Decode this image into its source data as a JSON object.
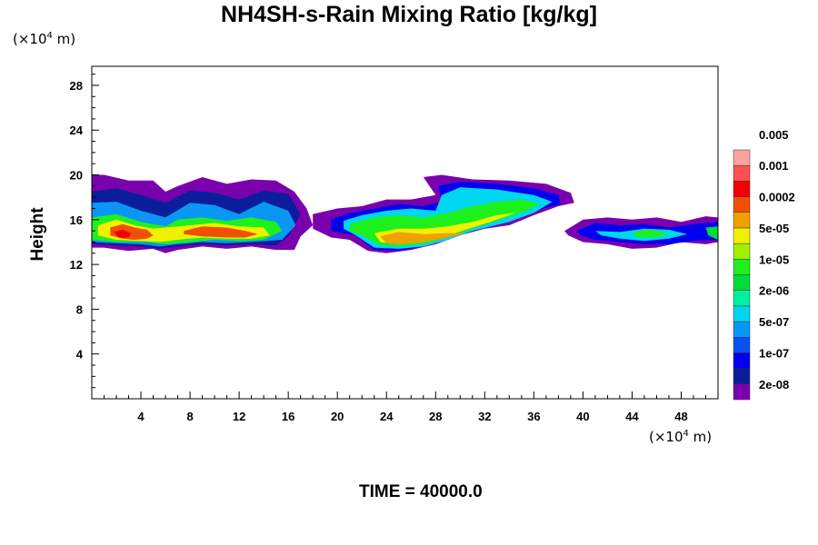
{
  "chart_data": {
    "type": "heatmap",
    "title": "NH4SH-s-Rain Mixing Ratio [kg/kg]",
    "ylabel": "Height",
    "x_unit_prefix": "(×10",
    "x_unit_exp": "4",
    "x_unit_suffix": " m)",
    "y_unit_prefix": "(×10",
    "y_unit_exp": "4",
    "y_unit_suffix": " m)",
    "xlim": [
      0,
      51
    ],
    "ylim": [
      0,
      29.7
    ],
    "x_ticks": [
      4,
      8,
      12,
      16,
      20,
      24,
      28,
      32,
      36,
      40,
      44,
      48
    ],
    "y_ticks": [
      4,
      8,
      12,
      16,
      20,
      24,
      28
    ],
    "colorbar": {
      "colors": [
        "#7a00ae",
        "#0a1e9c",
        "#0000ee",
        "#0a50f0",
        "#0a96f5",
        "#00d6f0",
        "#00f0a0",
        "#00dc3c",
        "#1ef01e",
        "#a0f000",
        "#f0f000",
        "#f0a000",
        "#f05000",
        "#f00000",
        "#ff5050",
        "#ffa0a0"
      ],
      "labels": [
        "2e-08",
        "1e-07",
        "5e-07",
        "2e-06",
        "1e-05",
        "5e-05",
        "0.0002",
        "0.001",
        "0.005"
      ]
    },
    "cloud_layers": [
      {
        "x": [
          0,
          1,
          3,
          5,
          6,
          7,
          9,
          11,
          13,
          15,
          16.5,
          17.5,
          18,
          17,
          16.5,
          15,
          13,
          11,
          9,
          7,
          6,
          5,
          3,
          1,
          0
        ],
        "y": [
          20,
          20,
          19.5,
          19.5,
          18.5,
          19,
          19.8,
          19.2,
          19.6,
          19.5,
          18.5,
          17,
          15.5,
          14.5,
          13.3,
          13.3,
          13.6,
          13.4,
          13.6,
          13.3,
          13,
          13.4,
          13.2,
          13.5,
          13.5
        ],
        "level": 0
      },
      {
        "x": [
          0,
          2,
          4,
          6,
          8,
          10,
          12,
          14,
          16,
          17,
          16,
          15,
          13,
          11,
          9,
          7,
          5.5,
          4,
          2,
          0
        ],
        "y": [
          18.5,
          18.8,
          18.2,
          17.5,
          18.6,
          18.4,
          17.8,
          18.6,
          18.3,
          16.5,
          14.5,
          13.7,
          13.8,
          13.7,
          13.8,
          13.6,
          13.4,
          13.6,
          13.7,
          13.8
        ],
        "level": 1
      },
      {
        "x": [
          0,
          2,
          4,
          6,
          8,
          10,
          12,
          14,
          16,
          16.6,
          15.5,
          13,
          11,
          9,
          7,
          5.5,
          4,
          2,
          0
        ],
        "y": [
          17.5,
          17.6,
          16.8,
          16.2,
          17.5,
          17.3,
          16.5,
          17.6,
          16.8,
          15.5,
          14.2,
          14.0,
          13.9,
          14.0,
          13.8,
          13.6,
          13.8,
          13.9,
          14.0
        ],
        "level": 4
      },
      {
        "x": [
          0,
          2,
          4,
          6,
          7,
          9,
          11,
          13,
          15,
          15.5,
          14,
          12,
          10,
          8,
          6,
          4.5,
          2,
          0
        ],
        "y": [
          16.2,
          16.5,
          15.8,
          15.4,
          16.0,
          16.2,
          15.9,
          16.2,
          15.8,
          15.0,
          14.2,
          14.1,
          14.2,
          14.0,
          13.8,
          14.0,
          14.0,
          14.2
        ],
        "level": 8
      },
      {
        "x": [
          0.5,
          2,
          3.5,
          5,
          6,
          8,
          10,
          12,
          14,
          14.5,
          13,
          11,
          9,
          7,
          5.5,
          4,
          2,
          0.5
        ],
        "y": [
          15.5,
          16.0,
          15.5,
          15.2,
          15.3,
          15.5,
          15.7,
          15.4,
          15.3,
          14.6,
          14.3,
          14.3,
          14.4,
          14.2,
          14.0,
          14.1,
          14.2,
          14.6
        ],
        "level": 10
      },
      {
        "x": [
          1.5,
          2.5,
          3.5,
          4.5,
          5,
          4.5,
          3.5,
          2.5,
          1.5
        ],
        "y": [
          15.3,
          15.6,
          15.3,
          15.1,
          14.6,
          14.3,
          14.2,
          14.3,
          14.6
        ],
        "level": 12
      },
      {
        "x": [
          7.5,
          9,
          11,
          12.5,
          13.5,
          12.5,
          11,
          9,
          7.5
        ],
        "y": [
          15.0,
          15.4,
          15.3,
          15.0,
          14.7,
          14.4,
          14.4,
          14.5,
          14.7
        ],
        "level": 12
      },
      {
        "x": [
          1.8,
          2.5,
          3.2,
          3.0,
          2.2
        ],
        "y": [
          14.9,
          15.1,
          14.8,
          14.4,
          14.4
        ],
        "level": 13
      },
      {
        "x": [
          18,
          20,
          22,
          24,
          26,
          28,
          27,
          28.5,
          31,
          34,
          37,
          39,
          39.3,
          38,
          36,
          34,
          32,
          30,
          28,
          26,
          24,
          22.5,
          21,
          19.5,
          18
        ],
        "y": [
          16.5,
          17.0,
          17.2,
          17.8,
          17.8,
          18.2,
          19.8,
          20.0,
          19.6,
          19.5,
          19.2,
          18.4,
          17.5,
          17.2,
          16.4,
          15.5,
          15.2,
          14.6,
          13.8,
          13.3,
          13.0,
          13.2,
          14.2,
          14.4,
          15.2
        ],
        "level": 0
      },
      {
        "x": [
          19.5,
          21,
          23,
          25,
          27,
          28.5,
          28.2,
          30,
          33,
          36,
          38,
          38.2,
          36,
          34,
          31,
          29,
          27,
          25,
          23,
          21.5,
          19.5
        ],
        "y": [
          16.0,
          16.6,
          17.0,
          17.4,
          17.2,
          17.6,
          19.0,
          19.4,
          19.2,
          18.8,
          18.2,
          17.4,
          16.8,
          15.8,
          15.0,
          14.2,
          13.6,
          13.2,
          13.3,
          14.6,
          15.0
        ],
        "level": 2
      },
      {
        "x": [
          20.5,
          22,
          24,
          26,
          28,
          28.5,
          30,
          33,
          36,
          37.5,
          36,
          34,
          31,
          29,
          27,
          25,
          23,
          21.5,
          20.5
        ],
        "y": [
          15.9,
          16.4,
          16.8,
          17.0,
          16.8,
          18.2,
          18.9,
          18.7,
          18.2,
          17.6,
          16.6,
          15.8,
          15.0,
          14.2,
          13.6,
          13.4,
          13.5,
          14.6,
          15.2
        ],
        "level": 5
      },
      {
        "x": [
          21,
          23,
          25,
          27,
          29,
          31,
          33,
          35,
          36.5,
          35,
          33,
          31,
          29,
          27,
          25,
          23.5,
          22,
          21
        ],
        "y": [
          15.6,
          16.2,
          16.4,
          16.2,
          16.6,
          17.2,
          17.6,
          17.8,
          17.4,
          16.6,
          15.9,
          15.2,
          14.4,
          13.8,
          13.6,
          13.7,
          14.6,
          15.0
        ],
        "level": 8
      },
      {
        "x": [
          23,
          25,
          27,
          29,
          31,
          33,
          34.5,
          33,
          31,
          29,
          27,
          25,
          23.5
        ],
        "y": [
          14.8,
          15.2,
          15.2,
          15.4,
          15.8,
          16.4,
          16.6,
          16.0,
          15.3,
          14.6,
          14.0,
          13.8,
          14.0
        ],
        "level": 10
      },
      {
        "x": [
          23.5,
          25,
          27,
          29,
          30.5,
          29,
          27,
          25,
          24
        ],
        "y": [
          14.5,
          14.9,
          14.7,
          14.8,
          14.8,
          14.4,
          14.0,
          13.8,
          13.9
        ],
        "level": 11
      },
      {
        "x": [
          38.5,
          40,
          42,
          44,
          46,
          48,
          50,
          51,
          51,
          50,
          48,
          46,
          44,
          42,
          40,
          38.8
        ],
        "y": [
          15.0,
          16.0,
          16.2,
          16.0,
          16.2,
          15.8,
          16.3,
          16.2,
          14.0,
          13.8,
          14.0,
          13.5,
          13.4,
          13.8,
          14.0,
          14.6
        ],
        "level": 0
      },
      {
        "x": [
          39.5,
          41,
          43,
          45,
          47,
          49,
          51,
          51,
          49,
          47,
          45,
          43,
          41,
          39.8
        ],
        "y": [
          15.0,
          15.7,
          15.5,
          15.6,
          15.3,
          15.6,
          15.8,
          14.2,
          14.1,
          13.8,
          13.8,
          14.0,
          14.2,
          14.6
        ],
        "level": 2
      },
      {
        "x": [
          41,
          43,
          45,
          47,
          48.5,
          47,
          45,
          43,
          41.5
        ],
        "y": [
          15.0,
          14.9,
          15.2,
          15.1,
          14.7,
          14.3,
          14.1,
          14.3,
          14.6
        ],
        "level": 5
      },
      {
        "x": [
          44,
          45.5,
          47,
          46,
          44.5
        ],
        "y": [
          14.9,
          15.1,
          14.8,
          14.4,
          14.4
        ],
        "level": 8
      },
      {
        "x": [
          50,
          51,
          51,
          50.2
        ],
        "y": [
          15.3,
          15.4,
          14.2,
          14.6
        ],
        "level": 7
      }
    ]
  },
  "footer": {
    "time_text": "TIME = 40000.0"
  }
}
